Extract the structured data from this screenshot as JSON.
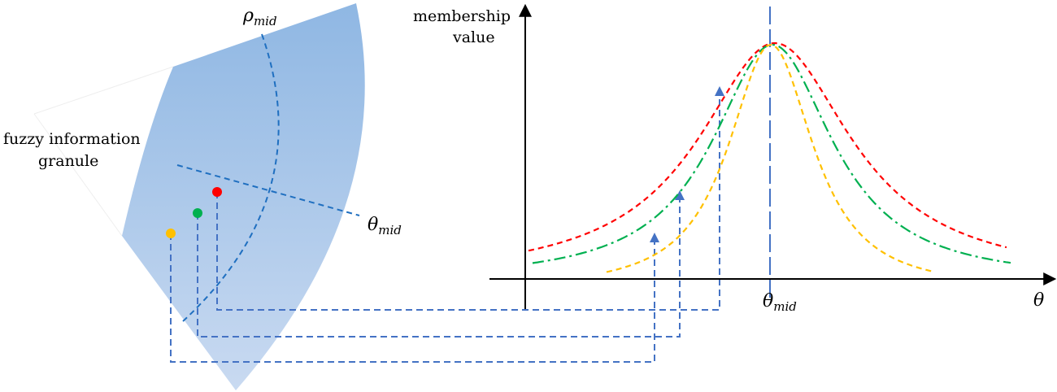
{
  "granule": {
    "label_line1": "fuzzy information",
    "label_line2": "granule",
    "rho_symbol": "ρ",
    "rho_subscript": "mid",
    "theta_symbol": "θ",
    "theta_subscript": "mid",
    "fill_color_top": "#8fb7e3",
    "fill_color_bottom": "#c9daf1",
    "guide_line_color": "#1f6fc0",
    "connector_color": "#4472c4"
  },
  "points": [
    {
      "name": "red",
      "color": "#ff0000"
    },
    {
      "name": "green",
      "color": "#00b050"
    },
    {
      "name": "yellow",
      "color": "#ffc000"
    }
  ],
  "chart": {
    "y_axis_label_line1": "membership",
    "y_axis_label_line2": "value",
    "x_axis_symbol": "θ",
    "center_symbol": "θ",
    "center_subscript": "mid",
    "center_line_color": "#4472c4",
    "curves": [
      {
        "name": "red-curve",
        "color": "#ff0000",
        "style": "dashed"
      },
      {
        "name": "green-curve",
        "color": "#00b050",
        "style": "dash-dot"
      },
      {
        "name": "yellow-curve",
        "color": "#ffc000",
        "style": "dashed"
      }
    ]
  }
}
